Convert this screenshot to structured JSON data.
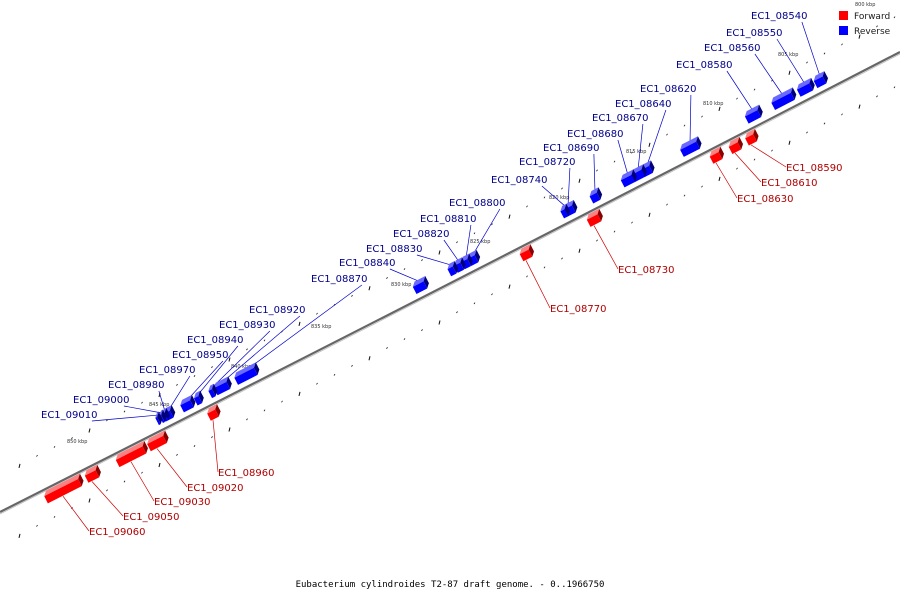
{
  "caption": "Eubacterium cylindroides T2-87 draft genome. - 0..1966750",
  "legend": [
    {
      "label": "Forward",
      "color": "#ff0000"
    },
    {
      "label": "Reverse",
      "color": "#0000ff"
    }
  ],
  "colors": {
    "forward": "#ff0000",
    "reverse": "#0000ff",
    "backbone": "#666666"
  },
  "kbp_ticks": [
    "800 kbp",
    "805 kbp",
    "810 kbp",
    "815 kbp",
    "820 kbp",
    "825 kbp",
    "830 kbp",
    "835 kbp",
    "840 kbp",
    "845 kbp",
    "850 kbp"
  ],
  "reverse_genes": [
    "EC1_08540",
    "EC1_08550",
    "EC1_08560",
    "EC1_08580",
    "EC1_08620",
    "EC1_08640",
    "EC1_08670",
    "EC1_08680",
    "EC1_08690",
    "EC1_08720",
    "EC1_08740",
    "EC1_08800",
    "EC1_08810",
    "EC1_08820",
    "EC1_08830",
    "EC1_08840",
    "EC1_08870",
    "EC1_08920",
    "EC1_08930",
    "EC1_08940",
    "EC1_08950",
    "EC1_08970",
    "EC1_08980",
    "EC1_09000",
    "EC1_09010"
  ],
  "forward_genes": [
    "EC1_08590",
    "EC1_08610",
    "EC1_08630",
    "EC1_08730",
    "EC1_08770",
    "EC1_08960",
    "EC1_09020",
    "EC1_09030",
    "EC1_09050",
    "EC1_09060"
  ]
}
